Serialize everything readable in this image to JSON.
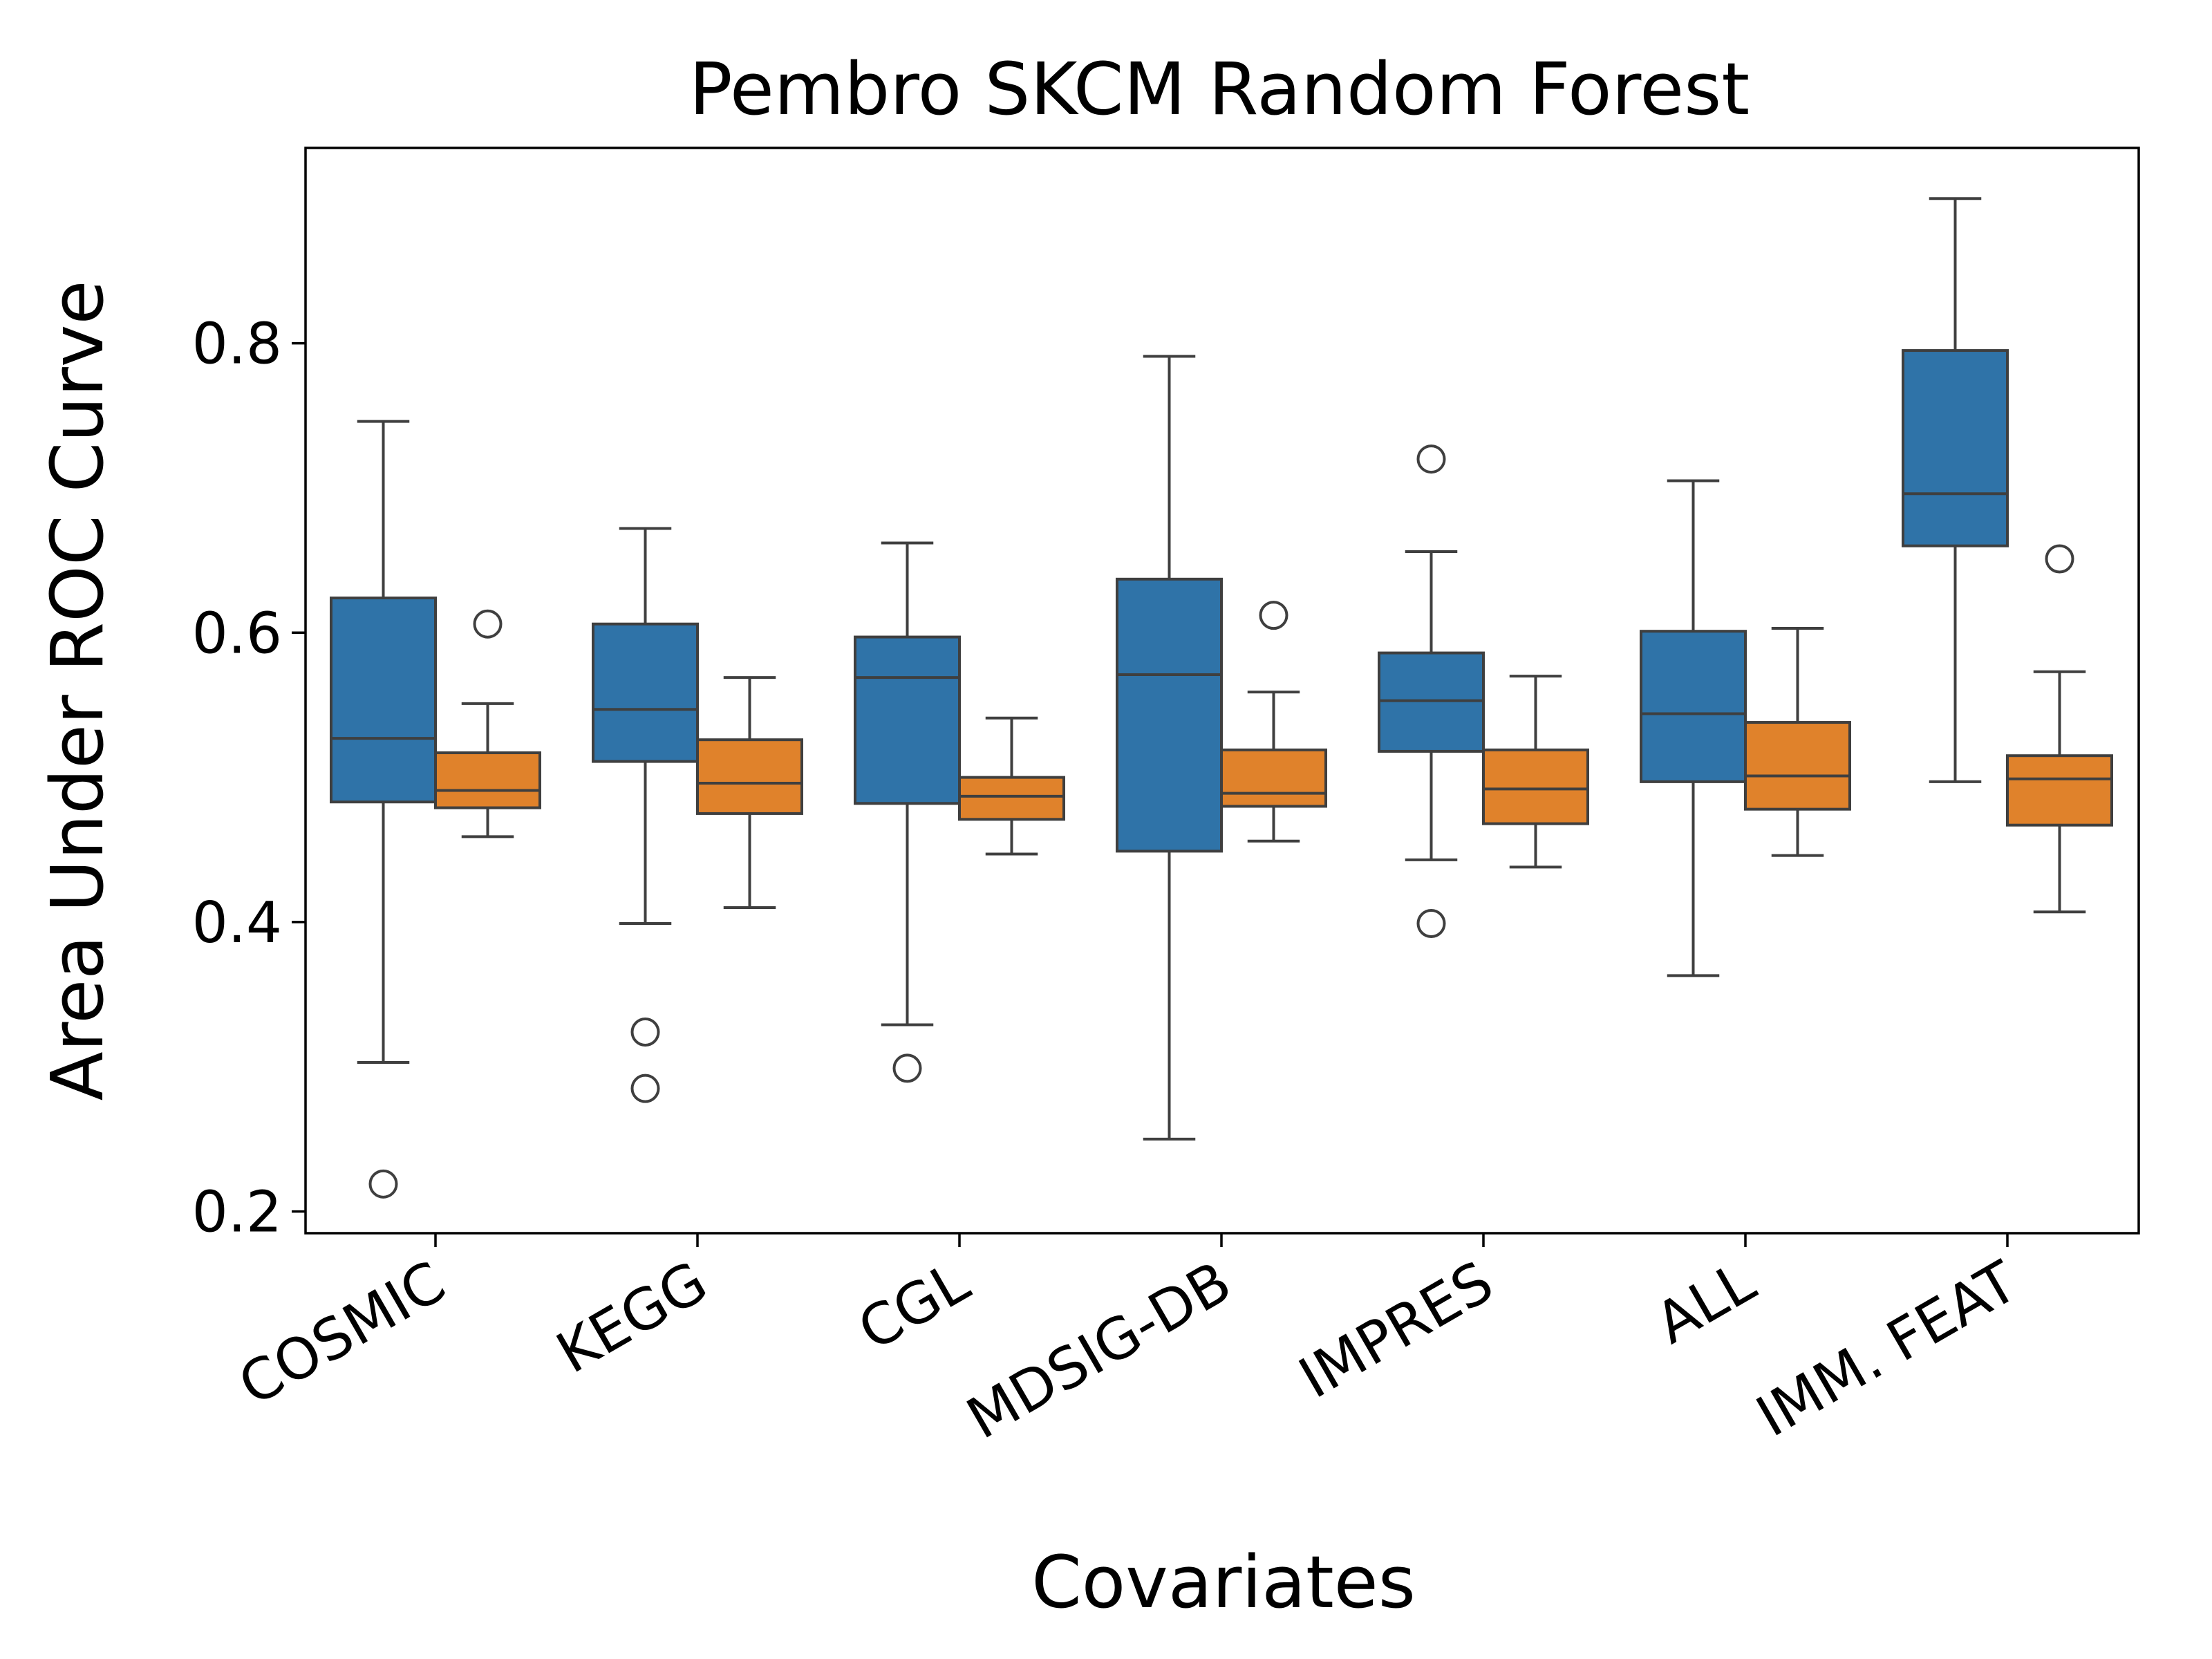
{
  "chart_data": {
    "type": "box",
    "title": "Pembro  SKCM  Random Forest",
    "xlabel": "Covariates",
    "ylabel": "Area Under ROC Curve",
    "ylim": [
      0.185,
      0.935
    ],
    "yticks": [
      0.2,
      0.4,
      0.6,
      0.8
    ],
    "ytick_labels": [
      "0.2",
      "0.4",
      "0.6",
      "0.8"
    ],
    "grid": false,
    "legend": false,
    "categories": [
      "COSMIC",
      "KEGG",
      "CGL",
      "MDSIG-DB",
      "IMPRES",
      "ALL",
      "IMM. FEAT"
    ],
    "series": [
      {
        "color": "#2f73a8",
        "boxes": [
          {
            "whislo": 0.303,
            "q1": 0.483,
            "med": 0.527,
            "q3": 0.624,
            "whishi": 0.746,
            "fliers": [
              0.219
            ]
          },
          {
            "whislo": 0.399,
            "q1": 0.511,
            "med": 0.547,
            "q3": 0.606,
            "whishi": 0.672,
            "fliers": [
              0.324,
              0.285
            ]
          },
          {
            "whislo": 0.329,
            "q1": 0.482,
            "med": 0.569,
            "q3": 0.597,
            "whishi": 0.662,
            "fliers": [
              0.299
            ]
          },
          {
            "whislo": 0.25,
            "q1": 0.449,
            "med": 0.571,
            "q3": 0.637,
            "whishi": 0.791,
            "fliers": []
          },
          {
            "whislo": 0.443,
            "q1": 0.518,
            "med": 0.553,
            "q3": 0.586,
            "whishi": 0.656,
            "fliers": [
              0.72,
              0.399
            ]
          },
          {
            "whislo": 0.363,
            "q1": 0.497,
            "med": 0.544,
            "q3": 0.601,
            "whishi": 0.705,
            "fliers": []
          },
          {
            "whislo": 0.497,
            "q1": 0.66,
            "med": 0.696,
            "q3": 0.795,
            "whishi": 0.9,
            "fliers": []
          }
        ]
      },
      {
        "color": "#e0822b",
        "boxes": [
          {
            "whislo": 0.459,
            "q1": 0.479,
            "med": 0.491,
            "q3": 0.517,
            "whishi": 0.551,
            "fliers": [
              0.606
            ]
          },
          {
            "whislo": 0.41,
            "q1": 0.475,
            "med": 0.496,
            "q3": 0.526,
            "whishi": 0.569,
            "fliers": []
          },
          {
            "whislo": 0.447,
            "q1": 0.471,
            "med": 0.487,
            "q3": 0.5,
            "whishi": 0.541,
            "fliers": []
          },
          {
            "whislo": 0.456,
            "q1": 0.48,
            "med": 0.489,
            "q3": 0.519,
            "whishi": 0.559,
            "fliers": [
              0.612
            ]
          },
          {
            "whislo": 0.438,
            "q1": 0.468,
            "med": 0.492,
            "q3": 0.519,
            "whishi": 0.57,
            "fliers": []
          },
          {
            "whislo": 0.446,
            "q1": 0.478,
            "med": 0.501,
            "q3": 0.538,
            "whishi": 0.603,
            "fliers": []
          },
          {
            "whislo": 0.407,
            "q1": 0.467,
            "med": 0.499,
            "q3": 0.515,
            "whishi": 0.573,
            "fliers": [
              0.651
            ]
          }
        ]
      }
    ]
  }
}
